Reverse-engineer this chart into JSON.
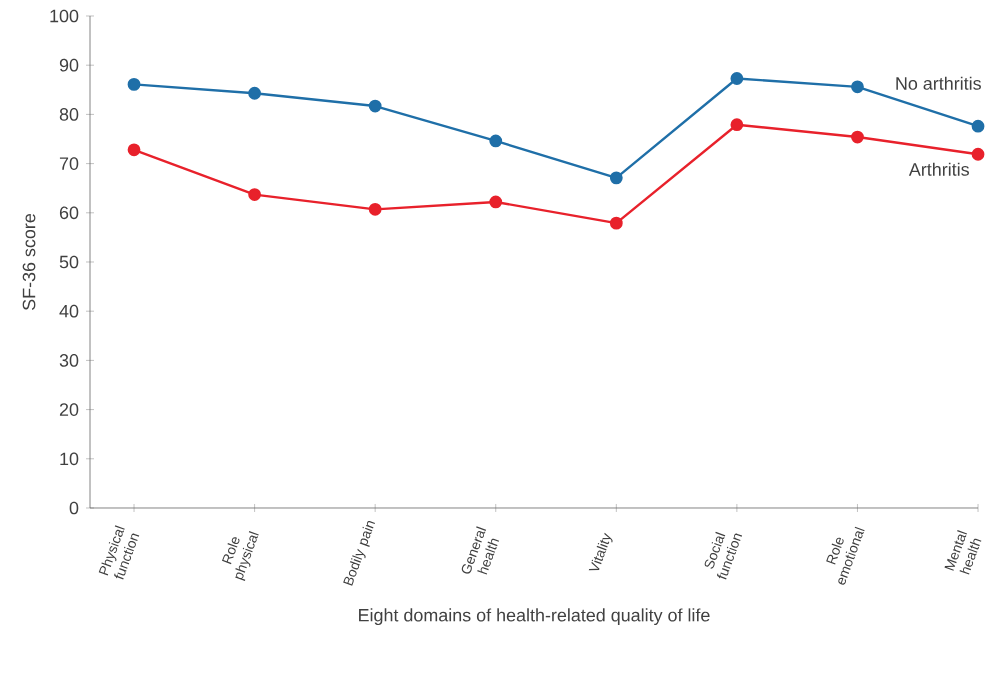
{
  "chart_data": {
    "type": "line",
    "xlabel": "Eight domains of health-related quality of life",
    "ylabel": "SF-36 score",
    "categories": [
      "Physical function",
      "Role physical",
      "Bodily pain",
      "General health",
      "Vitality",
      "Social function",
      "Role emotional",
      "Mental health"
    ],
    "series": [
      {
        "name": "No arthritis",
        "color": "#1f6fa8",
        "values": [
          86.1,
          84.3,
          81.7,
          74.6,
          67.1,
          87.3,
          85.6,
          77.6
        ]
      },
      {
        "name": "Arthritis",
        "color": "#e8212b",
        "values": [
          72.8,
          63.7,
          60.7,
          62.2,
          57.9,
          77.9,
          75.4,
          71.9
        ]
      }
    ],
    "ylim": [
      0,
      100
    ],
    "yticks": [
      0,
      10,
      20,
      30,
      40,
      50,
      60,
      70,
      80,
      90,
      100
    ],
    "marker": "circle",
    "line_style": "solid"
  }
}
